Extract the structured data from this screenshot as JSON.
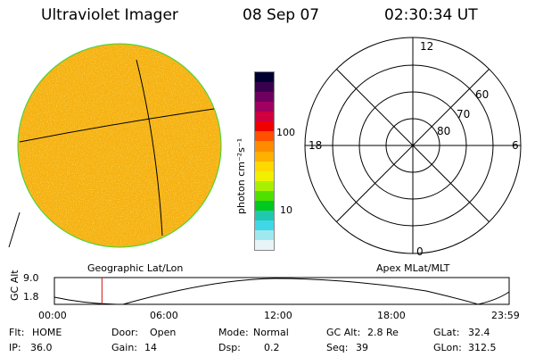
{
  "header": {
    "title": "Ultraviolet Imager",
    "date": "08 Sep 07",
    "time": "02:30:34 UT"
  },
  "image_panel": {
    "fill_color": "#f5b010",
    "rim_color": "#3ad63a",
    "caption": "Geographic Lat/Lon"
  },
  "colorbar": {
    "unit_label": "photon cm⁻²s⁻¹",
    "ticks": [
      "100",
      "10"
    ],
    "colors": [
      "#000030",
      "#3a0050",
      "#700060",
      "#a00060",
      "#d00040",
      "#f00000",
      "#ff5000",
      "#ff8c00",
      "#ffb000",
      "#ffd800",
      "#f0f000",
      "#a8f000",
      "#50e000",
      "#00c820",
      "#20c8b0",
      "#40d8e8",
      "#a0e8f0",
      "#e8f4f8"
    ]
  },
  "polar_plot": {
    "caption": "Apex MLat/MLT",
    "mlt_labels": [
      "12",
      "18",
      "6",
      "0"
    ],
    "lat_labels": [
      "60",
      "70",
      "80"
    ]
  },
  "timeline": {
    "ylabel": "GC Alt",
    "y_ticks": [
      "9.0",
      "1.8"
    ],
    "x_ticks": [
      "00:00",
      "06:00",
      "12:00",
      "18:00",
      "23:59"
    ],
    "current_marker_hour": 2.51
  },
  "footer": {
    "row1": [
      {
        "label": "Flt:",
        "value": "HOME"
      },
      {
        "label": "Door:",
        "value": "Open"
      },
      {
        "label": "Mode:",
        "value": "Normal"
      },
      {
        "label": "GC Alt:",
        "value": "2.8 Re"
      },
      {
        "label": "GLat:",
        "value": "32.4"
      }
    ],
    "row2": [
      {
        "label": "IP:",
        "value": "36.0"
      },
      {
        "label": "Gain:",
        "value": "14"
      },
      {
        "label": "Dsp:",
        "value": "0.2"
      },
      {
        "label": "Seq:",
        "value": "39"
      },
      {
        "label": "GLon:",
        "value": "312.5"
      }
    ]
  }
}
